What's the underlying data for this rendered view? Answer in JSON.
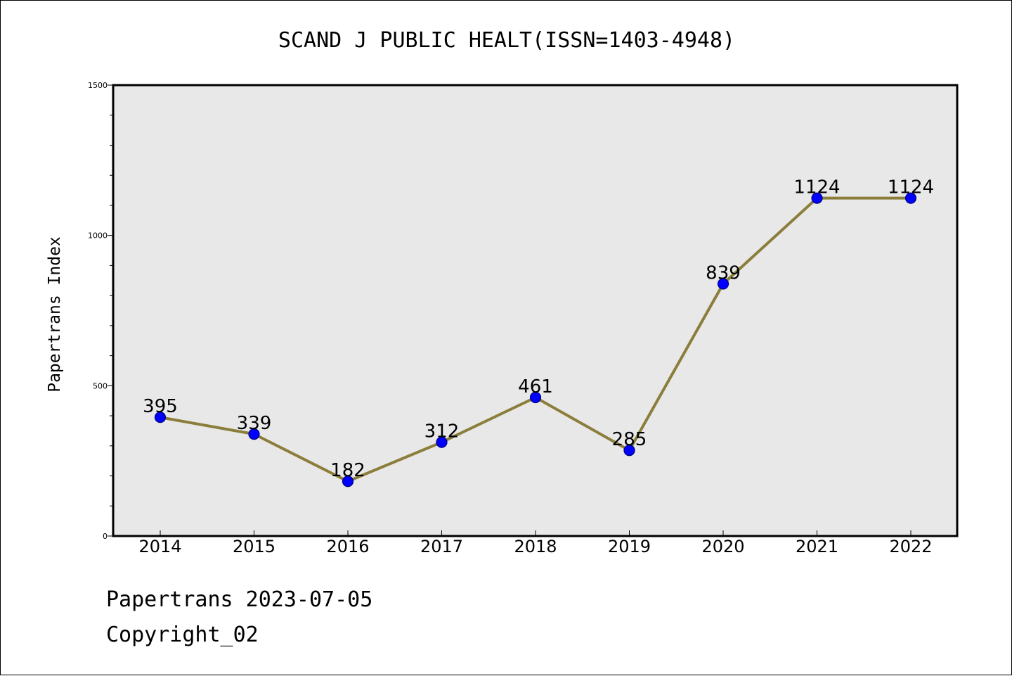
{
  "chart_data": {
    "type": "line",
    "title": "SCAND J PUBLIC HEALT(ISSN=1403-4948)",
    "xlabel": "",
    "ylabel": "Papertrans Index",
    "categories": [
      "2014",
      "2015",
      "2016",
      "2017",
      "2018",
      "2019",
      "2020",
      "2021",
      "2022"
    ],
    "series": [
      {
        "values": [
          395,
          339,
          182,
          312,
          461,
          285,
          839,
          1124,
          1124
        ]
      }
    ],
    "data_labels": [
      "395",
      "339",
      "182",
      "312",
      "461",
      "285",
      "839",
      "1124",
      "1124"
    ],
    "ylim": [
      0,
      1500
    ],
    "yticks": [
      0,
      500,
      1000,
      1500
    ],
    "ytick_labels": [
      "0",
      "500",
      "1000",
      "1500"
    ],
    "grid": false,
    "legend": "none",
    "colors": {
      "line": "#8b7d3a",
      "marker_fill": "#0000ff",
      "marker_edge": "#000080",
      "plot_background": "#e8e8e8"
    }
  },
  "footer": {
    "line1": "Papertrans 2023-07-05",
    "line2": "Copyright_02"
  }
}
